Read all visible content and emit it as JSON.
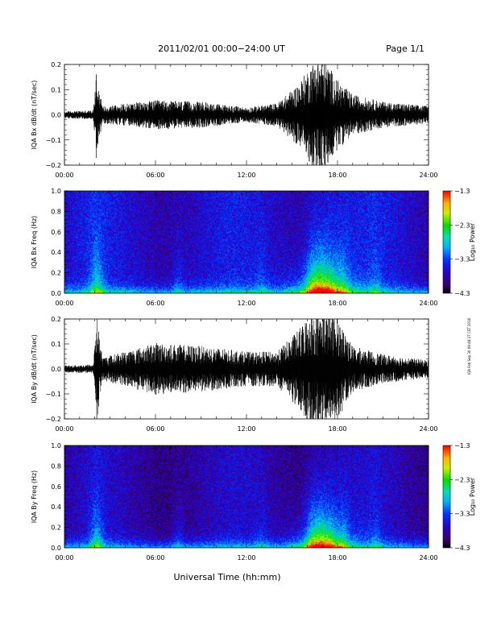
{
  "header": {
    "title": "2011/02/01  00:00−24:00 UT",
    "page": "Page 1/1"
  },
  "footer": {
    "xlabel": "Universal Time (hh:mm)"
  },
  "side_stamp": "IQA Feb Sep 30 09:48:27 CST 2016",
  "colors": {
    "trace": "#000000",
    "axis": "#000000",
    "background": "#ffffff"
  },
  "chart_data": [
    {
      "type": "line",
      "ylabel": "IQA Bx dB/dt (nT/sec)",
      "xlim": [
        0,
        24
      ],
      "ylim": [
        -0.2,
        0.2
      ],
      "x_ticks": [
        "00:00",
        "06:00",
        "12:00",
        "18:00",
        "24:00"
      ],
      "y_ticks": [
        "0.2",
        "0.1",
        "0.0",
        "−0.1",
        "−0.2"
      ],
      "series": [
        {
          "x": [
            0,
            1.9,
            2.1,
            2.5,
            6,
            9,
            12,
            14,
            15.5,
            16.2,
            16.8,
            17.3,
            18,
            19,
            21,
            24
          ],
          "amplitude": [
            0.012,
            0.015,
            0.16,
            0.03,
            0.05,
            0.045,
            0.025,
            0.04,
            0.11,
            0.17,
            0.2,
            0.18,
            0.12,
            0.07,
            0.045,
            0.03
          ]
        }
      ]
    },
    {
      "type": "heatmap",
      "ylabel": "IQA Bx Freq (Hz)",
      "xlim": [
        0,
        24
      ],
      "ylim": [
        0,
        1.0
      ],
      "x_ticks": [
        "00:00",
        "06:00",
        "12:00",
        "18:00",
        "24:00"
      ],
      "y_ticks": [
        "1.0",
        "0.8",
        "0.6",
        "0.4",
        "0.2",
        "0.0"
      ],
      "colorbar": {
        "label": "Log₁₀ Power",
        "range": [
          -4.3,
          -1.3
        ],
        "ticks": [
          "−1.3",
          "−2.3",
          "−3.3",
          "−4.3"
        ]
      }
    },
    {
      "type": "line",
      "ylabel": "IQA By dB/dt (nT/sec)",
      "xlim": [
        0,
        24
      ],
      "ylim": [
        -0.2,
        0.2
      ],
      "x_ticks": [
        "00:00",
        "06:00",
        "12:00",
        "18:00",
        "24:00"
      ],
      "y_ticks": [
        "0.2",
        "0.1",
        "0.0",
        "−0.1",
        "−0.2"
      ],
      "series": [
        {
          "x": [
            0,
            1.9,
            2.1,
            2.5,
            6,
            9,
            12,
            14,
            15.5,
            16.2,
            16.8,
            17.3,
            18,
            19,
            21,
            24
          ],
          "amplitude": [
            0.012,
            0.015,
            0.2,
            0.04,
            0.09,
            0.08,
            0.06,
            0.06,
            0.14,
            0.2,
            0.2,
            0.2,
            0.18,
            0.08,
            0.05,
            0.03
          ]
        }
      ]
    },
    {
      "type": "heatmap",
      "ylabel": "IQA By Freq (Hz)",
      "xlim": [
        0,
        24
      ],
      "ylim": [
        0,
        1.0
      ],
      "x_ticks": [
        "00:00",
        "06:00",
        "12:00",
        "18:00",
        "24:00"
      ],
      "y_ticks": [
        "1.0",
        "0.8",
        "0.6",
        "0.4",
        "0.2",
        "0.0"
      ],
      "colorbar": {
        "label": "Log₁₀ Power",
        "range": [
          -4.3,
          -1.3
        ],
        "ticks": [
          "−1.3",
          "−2.3",
          "−3.3",
          "−4.3"
        ]
      }
    }
  ]
}
